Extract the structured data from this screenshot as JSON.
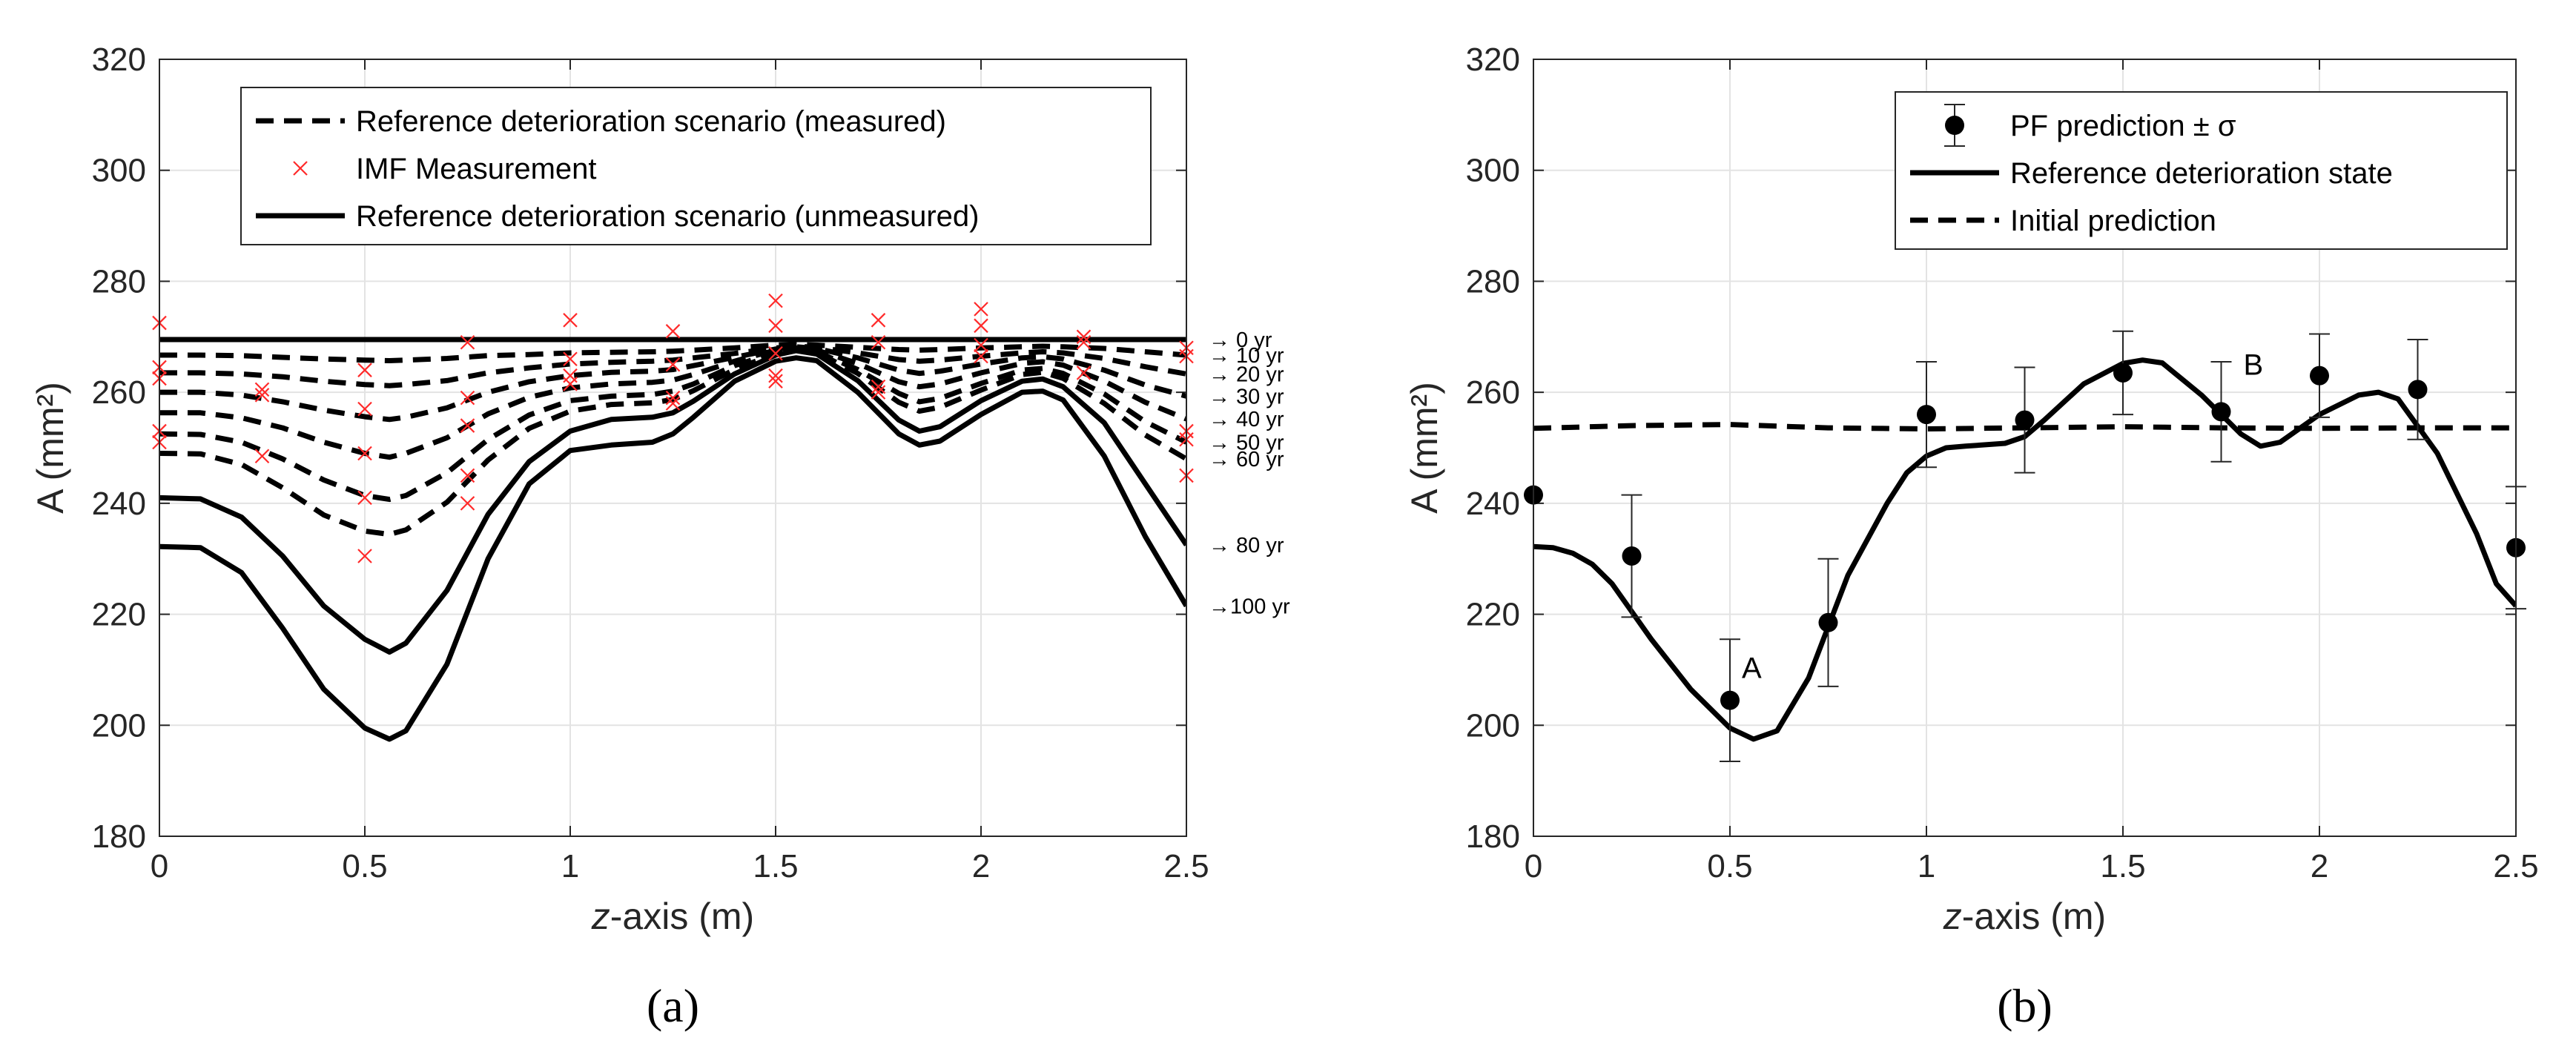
{
  "chart_data": [
    {
      "type": "line",
      "panel_label": "(a)",
      "title": "",
      "xlabel_italic": "z",
      "xlabel_rest": "-axis (m)",
      "ylabel": "A (mm²)",
      "xlim": [
        0,
        2.5
      ],
      "ylim": [
        180,
        320
      ],
      "xticks": [
        0,
        0.5,
        1,
        1.5,
        2,
        2.5
      ],
      "xtick_labels": [
        "0",
        "0.5",
        "1",
        "1.5",
        "2",
        "2.5"
      ],
      "yticks": [
        180,
        200,
        220,
        240,
        260,
        280,
        300,
        320
      ],
      "ytick_labels": [
        "180",
        "200",
        "220",
        "240",
        "260",
        "280",
        "300",
        "320"
      ],
      "grid": true,
      "legend": {
        "position": "top",
        "entries": [
          {
            "label": "Reference deterioration scenario (measured)",
            "style": "dashed"
          },
          {
            "label": "IMF Measurement",
            "style": "marker-x"
          },
          {
            "label": "Reference deterioration scenario (unmeasured)",
            "style": "solid"
          }
        ]
      },
      "x": [
        0,
        0.1,
        0.2,
        0.3,
        0.4,
        0.5,
        0.56,
        0.6,
        0.7,
        0.8,
        0.9,
        1.0,
        1.1,
        1.2,
        1.25,
        1.3,
        1.4,
        1.5,
        1.55,
        1.6,
        1.7,
        1.8,
        1.85,
        1.9,
        2.0,
        2.1,
        2.15,
        2.2,
        2.3,
        2.4,
        2.5
      ],
      "series": [
        {
          "name": "0 yr",
          "time_label": "→ 0 yr",
          "style": "solid",
          "values": [
            269.5,
            269.5,
            269.5,
            269.5,
            269.5,
            269.5,
            269.5,
            269.5,
            269.5,
            269.5,
            269.5,
            269.5,
            269.5,
            269.5,
            269.5,
            269.5,
            269.5,
            269.5,
            269.5,
            269.5,
            269.5,
            269.5,
            269.5,
            269.5,
            269.5,
            269.5,
            269.5,
            269.5,
            269.5,
            269.5,
            269.5
          ]
        },
        {
          "name": "10 yr",
          "time_label": "→ 10 yr",
          "style": "dashed",
          "values": [
            266.7,
            266.7,
            266.6,
            266.3,
            266.0,
            265.8,
            265.7,
            265.8,
            266.1,
            266.6,
            266.8,
            267.1,
            267.2,
            267.3,
            267.4,
            267.6,
            268.0,
            268.5,
            268.6,
            268.5,
            268.1,
            267.7,
            267.6,
            267.7,
            268.0,
            268.2,
            268.3,
            268.2,
            267.9,
            267.3,
            266.7
          ]
        },
        {
          "name": "20 yr",
          "time_label": "→ 20 yr",
          "style": "dashed",
          "values": [
            263.5,
            263.5,
            263.3,
            262.8,
            262.0,
            261.4,
            261.2,
            261.4,
            262.1,
            263.5,
            264.4,
            265.1,
            265.4,
            265.6,
            265.8,
            266.2,
            267.0,
            268.0,
            268.3,
            268.1,
            267.1,
            265.9,
            265.6,
            265.8,
            266.5,
            267.1,
            267.3,
            267.1,
            266.1,
            264.6,
            263.3
          ]
        },
        {
          "name": "30 yr",
          "time_label": "→ 30 yr",
          "style": "dashed",
          "values": [
            260.0,
            260.0,
            259.5,
            258.3,
            256.8,
            255.6,
            255.1,
            255.5,
            257.2,
            260.0,
            261.9,
            263.0,
            263.6,
            263.8,
            264.1,
            264.8,
            266.3,
            267.8,
            268.2,
            267.9,
            266.2,
            264.0,
            263.4,
            263.8,
            265.1,
            266.2,
            266.4,
            266.0,
            264.0,
            261.3,
            259.3
          ]
        },
        {
          "name": "40 yr",
          "time_label": "→ 40 yr",
          "style": "dashed",
          "values": [
            256.3,
            256.3,
            255.4,
            253.6,
            251.0,
            249.0,
            248.3,
            249.0,
            251.8,
            256.1,
            259.1,
            260.8,
            261.5,
            261.8,
            262.2,
            263.2,
            265.6,
            267.6,
            268.0,
            267.6,
            265.2,
            261.9,
            261.0,
            261.5,
            263.5,
            265.2,
            265.5,
            264.9,
            262.0,
            258.2,
            255.2
          ]
        },
        {
          "name": "50 yr",
          "time_label": "→ 50 yr",
          "style": "dashed",
          "values": [
            252.5,
            252.4,
            251.0,
            248.0,
            244.2,
            241.4,
            240.7,
            241.4,
            245.5,
            251.5,
            255.9,
            258.5,
            259.3,
            259.6,
            260.2,
            261.5,
            264.8,
            267.2,
            267.8,
            267.3,
            264.1,
            259.8,
            258.3,
            258.9,
            261.6,
            264.0,
            264.3,
            263.4,
            259.7,
            254.7,
            251.0
          ]
        },
        {
          "name": "60 yr",
          "time_label": "→ 60 yr",
          "style": "dashed",
          "values": [
            249.0,
            248.9,
            247.0,
            242.8,
            237.9,
            235.0,
            234.4,
            235.2,
            240.2,
            247.8,
            253.5,
            256.6,
            257.8,
            258.1,
            258.7,
            260.3,
            264.1,
            267.0,
            267.7,
            267.2,
            263.4,
            258.2,
            256.6,
            257.3,
            260.4,
            263.2,
            263.6,
            262.5,
            258.0,
            252.3,
            248.0
          ]
        },
        {
          "name": "80 yr",
          "time_label": "→ 80 yr",
          "style": "solid",
          "values": [
            241.0,
            240.8,
            237.5,
            230.5,
            221.5,
            215.5,
            213.2,
            214.8,
            224.3,
            238.0,
            247.5,
            253.0,
            255.1,
            255.5,
            256.3,
            258.4,
            263.3,
            266.7,
            267.5,
            266.9,
            262.1,
            255.0,
            253.0,
            253.8,
            258.5,
            262.0,
            262.4,
            261.0,
            254.5,
            243.5,
            232.5
          ]
        },
        {
          "name": "100 yr",
          "time_label": "→100 yr",
          "style": "solid",
          "values": [
            232.2,
            232.0,
            227.5,
            217.5,
            206.5,
            199.5,
            197.5,
            199.0,
            211.0,
            230.0,
            243.5,
            249.5,
            250.5,
            251.0,
            252.5,
            255.5,
            262.0,
            265.6,
            266.2,
            265.7,
            260.0,
            252.5,
            250.5,
            251.2,
            256.0,
            260.0,
            260.2,
            258.6,
            248.5,
            234.0,
            221.5
          ]
        }
      ],
      "measurements": {
        "name": "IMF Measurement",
        "points": [
          [
            0,
            272.5
          ],
          [
            0,
            264.5
          ],
          [
            0,
            262.5
          ],
          [
            0,
            253.0
          ],
          [
            0,
            251.0
          ],
          [
            0.25,
            260.5
          ],
          [
            0.25,
            259.5
          ],
          [
            0.25,
            248.5
          ],
          [
            0.5,
            264.0
          ],
          [
            0.5,
            257.0
          ],
          [
            0.5,
            249.0
          ],
          [
            0.5,
            241.0
          ],
          [
            0.5,
            230.5
          ],
          [
            0.75,
            269.0
          ],
          [
            0.75,
            259.0
          ],
          [
            0.75,
            254.0
          ],
          [
            0.75,
            245.0
          ],
          [
            0.75,
            240.0
          ],
          [
            1.0,
            273.0
          ],
          [
            1.0,
            266.0
          ],
          [
            1.0,
            263.0
          ],
          [
            1.0,
            261.5
          ],
          [
            1.25,
            271.0
          ],
          [
            1.25,
            265.0
          ],
          [
            1.25,
            259.0
          ],
          [
            1.25,
            258.0
          ],
          [
            1.5,
            276.5
          ],
          [
            1.5,
            272.0
          ],
          [
            1.5,
            267.0
          ],
          [
            1.5,
            263.0
          ],
          [
            1.5,
            262.0
          ],
          [
            1.75,
            273.0
          ],
          [
            1.75,
            269.0
          ],
          [
            1.75,
            261.0
          ],
          [
            1.75,
            260.0
          ],
          [
            2.0,
            275.0
          ],
          [
            2.0,
            272.0
          ],
          [
            2.0,
            268.5
          ],
          [
            2.0,
            266.5
          ],
          [
            2.25,
            270.0
          ],
          [
            2.25,
            269.0
          ],
          [
            2.25,
            263.5
          ],
          [
            2.5,
            268.0
          ],
          [
            2.5,
            266.5
          ],
          [
            2.5,
            253.0
          ],
          [
            2.5,
            251.5
          ],
          [
            2.5,
            245.0
          ]
        ]
      }
    },
    {
      "type": "line",
      "panel_label": "(b)",
      "title": "",
      "xlabel_italic": "z",
      "xlabel_rest": "-axis (m)",
      "ylabel": "A (mm²)",
      "xlim": [
        0,
        2.5
      ],
      "ylim": [
        180,
        320
      ],
      "xticks": [
        0,
        0.5,
        1,
        1.5,
        2,
        2.5
      ],
      "xtick_labels": [
        "0",
        "0.5",
        "1",
        "1.5",
        "2",
        "2.5"
      ],
      "yticks": [
        180,
        200,
        220,
        240,
        260,
        280,
        300,
        320
      ],
      "ytick_labels": [
        "180",
        "200",
        "220",
        "240",
        "260",
        "280",
        "300",
        "320"
      ],
      "grid": true,
      "legend": {
        "position": "top-right",
        "entries": [
          {
            "label": "PF prediction ± σ",
            "style": "marker-errorbar"
          },
          {
            "label": "Reference deterioration state",
            "style": "solid"
          },
          {
            "label": "Initial prediction",
            "style": "dashed"
          }
        ]
      },
      "reference": {
        "name": "Reference deterioration state",
        "x": [
          0,
          0.05,
          0.1,
          0.15,
          0.2,
          0.3,
          0.4,
          0.5,
          0.56,
          0.62,
          0.7,
          0.8,
          0.9,
          0.95,
          1.0,
          1.05,
          1.1,
          1.2,
          1.25,
          1.3,
          1.4,
          1.5,
          1.55,
          1.6,
          1.7,
          1.8,
          1.85,
          1.9,
          2.0,
          2.1,
          2.15,
          2.2,
          2.3,
          2.4,
          2.45,
          2.5
        ],
        "values": [
          232.2,
          232.0,
          231.0,
          229.0,
          225.5,
          215.5,
          206.5,
          199.5,
          197.5,
          199.0,
          208.5,
          227.0,
          240.0,
          245.5,
          248.5,
          250.0,
          250.3,
          250.8,
          252.0,
          255.0,
          261.5,
          265.2,
          265.8,
          265.3,
          259.5,
          252.5,
          250.3,
          251.0,
          256.0,
          259.5,
          260.0,
          258.8,
          249.0,
          234.5,
          225.5,
          221.5
        ]
      },
      "initial": {
        "name": "Initial prediction",
        "x": [
          0,
          0.25,
          0.5,
          0.75,
          1.0,
          1.25,
          1.5,
          1.75,
          2.0,
          2.25,
          2.5
        ],
        "values": [
          253.5,
          254.0,
          254.2,
          253.6,
          253.4,
          253.6,
          253.8,
          253.6,
          253.5,
          253.6,
          253.6
        ]
      },
      "predictions": {
        "name": "PF prediction ± σ",
        "x": [
          0,
          0.25,
          0.5,
          0.75,
          1.0,
          1.25,
          1.5,
          1.75,
          2.0,
          2.25,
          2.5
        ],
        "values": [
          241.5,
          230.5,
          204.5,
          218.5,
          256.0,
          255.0,
          263.5,
          256.5,
          263.0,
          260.5,
          232.0
        ],
        "sigma": [
          0,
          11,
          11,
          11.5,
          9.5,
          9.5,
          7.5,
          9.0,
          7.5,
          9.0,
          11.0
        ]
      },
      "annotations": [
        {
          "text": "A",
          "x": 0.5,
          "y": 204.5
        },
        {
          "text": "B",
          "x": 1.75,
          "y": 256.5
        }
      ]
    }
  ]
}
